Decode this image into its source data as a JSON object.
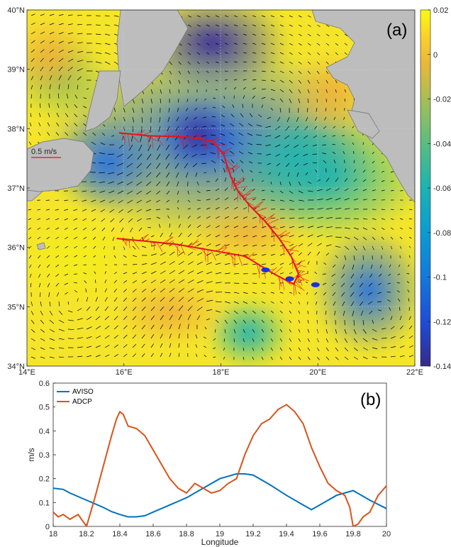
{
  "colors": {
    "aviso": "#0072bd",
    "adcp": "#d95319",
    "land": "#bdbdbd",
    "vector": "#000000",
    "ship_track": "#e8121b",
    "marker": "#1a2fe8"
  },
  "chart_data": [
    {
      "type": "heatmap",
      "panel_label": "(a)",
      "lon_range": [
        14,
        22
      ],
      "lat_range": [
        34,
        40
      ],
      "x_tick_labels": [
        "14°E",
        "16°E",
        "18°E",
        "20°E",
        "22°E"
      ],
      "y_tick_labels": [
        "34°N",
        "35°N",
        "36°N",
        "37°N",
        "38°N",
        "39°N",
        "40°N"
      ],
      "colorbar": {
        "ticks": [
          0.02,
          0,
          -0.02,
          -0.04,
          -0.06,
          -0.08,
          -0.1,
          -0.12,
          -0.14
        ],
        "tick_labels": [
          "0.02",
          "0",
          "-0.02",
          "-0.04",
          "-0.06",
          "-0.08",
          "-0.1",
          "-0.12",
          "-0.14"
        ],
        "range": [
          -0.14,
          0.02
        ],
        "colormap": "parula"
      },
      "scale_label": "0.5 m/s",
      "grid": true,
      "ship_track": [
        [
          15.9,
          37.93
        ],
        [
          16.5,
          37.88
        ],
        [
          17.3,
          37.86
        ],
        [
          17.8,
          37.8
        ],
        [
          18.05,
          37.58
        ],
        [
          18.2,
          37.2
        ],
        [
          18.35,
          36.95
        ],
        [
          18.6,
          36.7
        ],
        [
          18.9,
          36.45
        ],
        [
          19.2,
          36.15
        ],
        [
          19.45,
          35.85
        ],
        [
          19.6,
          35.55
        ],
        [
          19.5,
          35.38
        ],
        [
          19.1,
          35.55
        ],
        [
          18.5,
          35.85
        ],
        [
          17.8,
          35.95
        ],
        [
          17.1,
          36.05
        ],
        [
          16.5,
          36.1
        ],
        [
          15.85,
          36.15
        ]
      ],
      "markers": [
        [
          18.92,
          35.62
        ],
        [
          19.42,
          35.47
        ],
        [
          19.95,
          35.37
        ]
      ]
    },
    {
      "type": "line",
      "panel_label": "(b)",
      "xlabel": "Longitude",
      "ylabel": "m/s",
      "xlim": [
        18,
        20
      ],
      "ylim": [
        0,
        0.6
      ],
      "x_ticks": [
        "18",
        "18.2",
        "18.4",
        "18.6",
        "18.8",
        "19",
        "19.2",
        "19.4",
        "19.6",
        "19.8",
        "20"
      ],
      "y_ticks": [
        "0",
        "0.1",
        "0.2",
        "0.3",
        "0.4",
        "0.5",
        "0.6"
      ],
      "legend_placement": "top-left",
      "series": [
        {
          "name": "AVISO",
          "x": [
            18.0,
            18.06,
            18.1,
            18.2,
            18.3,
            18.35,
            18.4,
            18.45,
            18.5,
            18.55,
            18.6,
            18.7,
            18.8,
            18.9,
            19.0,
            19.05,
            19.1,
            19.15,
            19.2,
            19.3,
            19.4,
            19.5,
            19.55,
            19.6,
            19.7,
            19.8,
            19.85,
            19.9,
            20.0
          ],
          "values": [
            0.16,
            0.155,
            0.14,
            0.11,
            0.08,
            0.062,
            0.05,
            0.04,
            0.04,
            0.045,
            0.06,
            0.09,
            0.12,
            0.16,
            0.2,
            0.21,
            0.22,
            0.22,
            0.215,
            0.175,
            0.13,
            0.09,
            0.07,
            0.09,
            0.13,
            0.15,
            0.13,
            0.11,
            0.075
          ]
        },
        {
          "name": "ADCP",
          "x": [
            18.0,
            18.03,
            18.06,
            18.1,
            18.15,
            18.2,
            18.25,
            18.3,
            18.35,
            18.38,
            18.4,
            18.42,
            18.45,
            18.5,
            18.55,
            18.6,
            18.65,
            18.7,
            18.75,
            18.8,
            18.85,
            18.9,
            18.95,
            19.0,
            19.05,
            19.1,
            19.15,
            19.2,
            19.25,
            19.3,
            19.35,
            19.4,
            19.45,
            19.5,
            19.55,
            19.6,
            19.65,
            19.7,
            19.75,
            19.78,
            19.8,
            19.83,
            19.86,
            19.9,
            19.95,
            20.0
          ],
          "values": [
            0.06,
            0.04,
            0.05,
            0.03,
            0.05,
            0.0,
            0.12,
            0.25,
            0.38,
            0.45,
            0.48,
            0.47,
            0.42,
            0.41,
            0.38,
            0.32,
            0.26,
            0.2,
            0.16,
            0.14,
            0.18,
            0.16,
            0.14,
            0.15,
            0.18,
            0.2,
            0.3,
            0.38,
            0.43,
            0.45,
            0.49,
            0.51,
            0.48,
            0.43,
            0.33,
            0.25,
            0.18,
            0.15,
            0.13,
            0.08,
            0.0,
            0.01,
            0.04,
            0.06,
            0.13,
            0.17
          ]
        }
      ]
    }
  ]
}
